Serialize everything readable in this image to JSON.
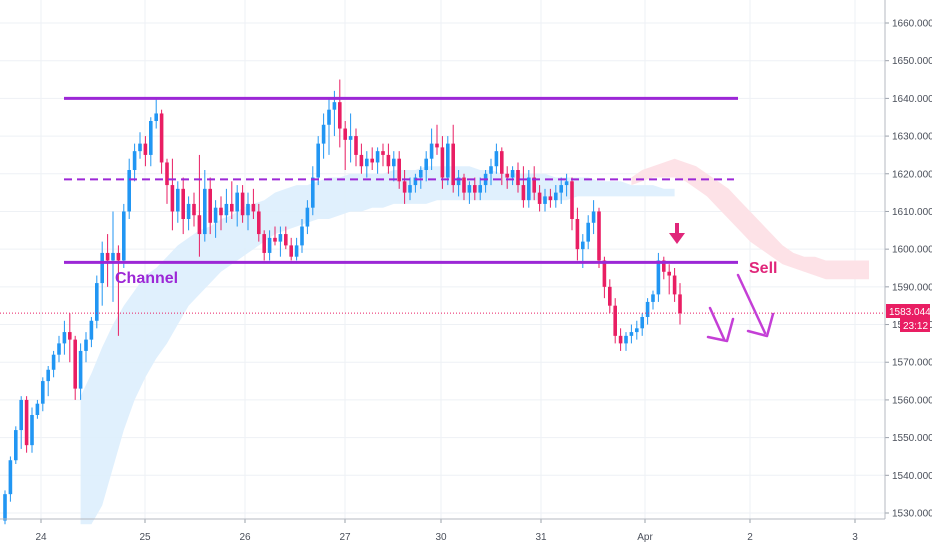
{
  "chart_data": {
    "type": "candlestick",
    "y_axis": {
      "ticks": [
        "1660.000",
        "1650.000",
        "1640.000",
        "1630.000",
        "1620.000",
        "1610.000",
        "1600.000",
        "1590.000",
        "1580.000",
        "1570.000",
        "1560.000",
        "1550.000",
        "1540.000",
        "1530.000"
      ],
      "range": [
        1527,
        1663
      ]
    },
    "x_axis": {
      "ticks": [
        "24",
        "25",
        "26",
        "27",
        "30",
        "31",
        "Apr",
        "2",
        "3"
      ]
    },
    "price_label": {
      "value": "1583.044",
      "countdown": "23:12",
      "value_num": 1583.044
    },
    "annotations": {
      "channel_label": "Channel",
      "sell_label": "Sell",
      "channel_top": 1640,
      "channel_mid": 1618.5,
      "channel_bottom": 1596.5
    },
    "candles": [
      {
        "o": 1528,
        "h": 1536,
        "l": 1527,
        "c": 1535
      },
      {
        "o": 1535,
        "h": 1545,
        "l": 1533,
        "c": 1544
      },
      {
        "o": 1544,
        "h": 1553,
        "l": 1543,
        "c": 1552
      },
      {
        "o": 1552,
        "h": 1561,
        "l": 1547,
        "c": 1560
      },
      {
        "o": 1560,
        "h": 1561,
        "l": 1546,
        "c": 1548
      },
      {
        "o": 1548,
        "h": 1558,
        "l": 1546,
        "c": 1556
      },
      {
        "o": 1556,
        "h": 1560,
        "l": 1555,
        "c": 1559
      },
      {
        "o": 1559,
        "h": 1566,
        "l": 1557,
        "c": 1565
      },
      {
        "o": 1565,
        "h": 1569,
        "l": 1561,
        "c": 1568
      },
      {
        "o": 1568,
        "h": 1573,
        "l": 1566,
        "c": 1572
      },
      {
        "o": 1572,
        "h": 1577,
        "l": 1570,
        "c": 1575
      },
      {
        "o": 1575,
        "h": 1581,
        "l": 1572,
        "c": 1578
      },
      {
        "o": 1578,
        "h": 1583,
        "l": 1570,
        "c": 1576
      },
      {
        "o": 1576,
        "h": 1577,
        "l": 1560,
        "c": 1563
      },
      {
        "o": 1563,
        "h": 1575,
        "l": 1560,
        "c": 1573
      },
      {
        "o": 1573,
        "h": 1578,
        "l": 1570,
        "c": 1576
      },
      {
        "o": 1576,
        "h": 1582,
        "l": 1574,
        "c": 1581
      },
      {
        "o": 1581,
        "h": 1593,
        "l": 1579,
        "c": 1591
      },
      {
        "o": 1591,
        "h": 1602,
        "l": 1585,
        "c": 1599
      },
      {
        "o": 1599,
        "h": 1604,
        "l": 1590,
        "c": 1597
      },
      {
        "o": 1597,
        "h": 1610,
        "l": 1586,
        "c": 1599
      },
      {
        "o": 1599,
        "h": 1601,
        "l": 1577,
        "c": 1597
      },
      {
        "o": 1597,
        "h": 1612,
        "l": 1595,
        "c": 1610
      },
      {
        "o": 1610,
        "h": 1624,
        "l": 1608,
        "c": 1621
      },
      {
        "o": 1621,
        "h": 1628,
        "l": 1618,
        "c": 1626
      },
      {
        "o": 1626,
        "h": 1631,
        "l": 1624,
        "c": 1628
      },
      {
        "o": 1628,
        "h": 1630,
        "l": 1622,
        "c": 1625
      },
      {
        "o": 1625,
        "h": 1635,
        "l": 1622,
        "c": 1634
      },
      {
        "o": 1634,
        "h": 1640,
        "l": 1632,
        "c": 1636
      },
      {
        "o": 1636,
        "h": 1637,
        "l": 1620,
        "c": 1623
      },
      {
        "o": 1623,
        "h": 1624,
        "l": 1612,
        "c": 1617
      },
      {
        "o": 1617,
        "h": 1624,
        "l": 1605,
        "c": 1610
      },
      {
        "o": 1610,
        "h": 1618,
        "l": 1607,
        "c": 1616
      },
      {
        "o": 1616,
        "h": 1619,
        "l": 1604,
        "c": 1608
      },
      {
        "o": 1608,
        "h": 1614,
        "l": 1605,
        "c": 1612
      },
      {
        "o": 1612,
        "h": 1615,
        "l": 1606,
        "c": 1609
      },
      {
        "o": 1609,
        "h": 1625,
        "l": 1598,
        "c": 1604
      },
      {
        "o": 1604,
        "h": 1621,
        "l": 1602,
        "c": 1616
      },
      {
        "o": 1616,
        "h": 1619,
        "l": 1604,
        "c": 1607
      },
      {
        "o": 1607,
        "h": 1613,
        "l": 1603,
        "c": 1611
      },
      {
        "o": 1611,
        "h": 1614,
        "l": 1605,
        "c": 1609
      },
      {
        "o": 1609,
        "h": 1616,
        "l": 1607,
        "c": 1612
      },
      {
        "o": 1612,
        "h": 1618,
        "l": 1608,
        "c": 1610
      },
      {
        "o": 1610,
        "h": 1617,
        "l": 1606,
        "c": 1615
      },
      {
        "o": 1615,
        "h": 1617,
        "l": 1607,
        "c": 1609
      },
      {
        "o": 1609,
        "h": 1615,
        "l": 1605,
        "c": 1612
      },
      {
        "o": 1612,
        "h": 1616,
        "l": 1608,
        "c": 1610
      },
      {
        "o": 1610,
        "h": 1612,
        "l": 1602,
        "c": 1604
      },
      {
        "o": 1604,
        "h": 1605,
        "l": 1597,
        "c": 1599
      },
      {
        "o": 1599,
        "h": 1605,
        "l": 1597,
        "c": 1603
      },
      {
        "o": 1603,
        "h": 1606,
        "l": 1601,
        "c": 1602
      },
      {
        "o": 1602,
        "h": 1606,
        "l": 1598,
        "c": 1604
      },
      {
        "o": 1604,
        "h": 1606,
        "l": 1600,
        "c": 1601
      },
      {
        "o": 1601,
        "h": 1603,
        "l": 1597,
        "c": 1598
      },
      {
        "o": 1598,
        "h": 1603,
        "l": 1597,
        "c": 1601
      },
      {
        "o": 1601,
        "h": 1608,
        "l": 1599,
        "c": 1606
      },
      {
        "o": 1606,
        "h": 1613,
        "l": 1604,
        "c": 1611
      },
      {
        "o": 1611,
        "h": 1622,
        "l": 1609,
        "c": 1619
      },
      {
        "o": 1619,
        "h": 1630,
        "l": 1617,
        "c": 1628
      },
      {
        "o": 1628,
        "h": 1636,
        "l": 1624,
        "c": 1633
      },
      {
        "o": 1633,
        "h": 1640,
        "l": 1625,
        "c": 1637
      },
      {
        "o": 1637,
        "h": 1642,
        "l": 1630,
        "c": 1639
      },
      {
        "o": 1639,
        "h": 1645,
        "l": 1627,
        "c": 1632
      },
      {
        "o": 1632,
        "h": 1634,
        "l": 1621,
        "c": 1629
      },
      {
        "o": 1629,
        "h": 1636,
        "l": 1623,
        "c": 1630
      },
      {
        "o": 1630,
        "h": 1632,
        "l": 1622,
        "c": 1625
      },
      {
        "o": 1625,
        "h": 1628,
        "l": 1620,
        "c": 1622
      },
      {
        "o": 1622,
        "h": 1626,
        "l": 1619,
        "c": 1624
      },
      {
        "o": 1624,
        "h": 1627,
        "l": 1621,
        "c": 1623
      },
      {
        "o": 1623,
        "h": 1627,
        "l": 1620,
        "c": 1626
      },
      {
        "o": 1626,
        "h": 1628,
        "l": 1622,
        "c": 1625
      },
      {
        "o": 1625,
        "h": 1628,
        "l": 1620,
        "c": 1622
      },
      {
        "o": 1622,
        "h": 1626,
        "l": 1618,
        "c": 1624
      },
      {
        "o": 1624,
        "h": 1626,
        "l": 1616,
        "c": 1618
      },
      {
        "o": 1618,
        "h": 1621,
        "l": 1612,
        "c": 1615
      },
      {
        "o": 1615,
        "h": 1619,
        "l": 1613,
        "c": 1617
      },
      {
        "o": 1617,
        "h": 1620,
        "l": 1615,
        "c": 1619
      },
      {
        "o": 1619,
        "h": 1622,
        "l": 1616,
        "c": 1621
      },
      {
        "o": 1621,
        "h": 1626,
        "l": 1618,
        "c": 1624
      },
      {
        "o": 1624,
        "h": 1632,
        "l": 1621,
        "c": 1628
      },
      {
        "o": 1628,
        "h": 1633,
        "l": 1625,
        "c": 1627
      },
      {
        "o": 1627,
        "h": 1630,
        "l": 1616,
        "c": 1619
      },
      {
        "o": 1619,
        "h": 1630,
        "l": 1617,
        "c": 1628
      },
      {
        "o": 1628,
        "h": 1633,
        "l": 1615,
        "c": 1617
      },
      {
        "o": 1617,
        "h": 1621,
        "l": 1614,
        "c": 1619
      },
      {
        "o": 1619,
        "h": 1620,
        "l": 1613,
        "c": 1615
      },
      {
        "o": 1615,
        "h": 1618,
        "l": 1612,
        "c": 1617
      },
      {
        "o": 1617,
        "h": 1619,
        "l": 1613,
        "c": 1615
      },
      {
        "o": 1615,
        "h": 1619,
        "l": 1613,
        "c": 1617
      },
      {
        "o": 1617,
        "h": 1621,
        "l": 1615,
        "c": 1620
      },
      {
        "o": 1620,
        "h": 1624,
        "l": 1617,
        "c": 1622
      },
      {
        "o": 1622,
        "h": 1628,
        "l": 1620,
        "c": 1626
      },
      {
        "o": 1626,
        "h": 1627,
        "l": 1617,
        "c": 1620
      },
      {
        "o": 1620,
        "h": 1622,
        "l": 1616,
        "c": 1619
      },
      {
        "o": 1619,
        "h": 1622,
        "l": 1617,
        "c": 1621
      },
      {
        "o": 1621,
        "h": 1623,
        "l": 1615,
        "c": 1617
      },
      {
        "o": 1617,
        "h": 1622,
        "l": 1611,
        "c": 1613
      },
      {
        "o": 1613,
        "h": 1621,
        "l": 1611,
        "c": 1619
      },
      {
        "o": 1619,
        "h": 1622,
        "l": 1613,
        "c": 1615
      },
      {
        "o": 1615,
        "h": 1617,
        "l": 1610,
        "c": 1612
      },
      {
        "o": 1612,
        "h": 1616,
        "l": 1610,
        "c": 1614
      },
      {
        "o": 1614,
        "h": 1616,
        "l": 1611,
        "c": 1613
      },
      {
        "o": 1613,
        "h": 1617,
        "l": 1611,
        "c": 1615
      },
      {
        "o": 1615,
        "h": 1619,
        "l": 1612,
        "c": 1617
      },
      {
        "o": 1617,
        "h": 1620,
        "l": 1614,
        "c": 1618
      },
      {
        "o": 1618,
        "h": 1619,
        "l": 1605,
        "c": 1608
      },
      {
        "o": 1608,
        "h": 1611,
        "l": 1597,
        "c": 1600
      },
      {
        "o": 1600,
        "h": 1604,
        "l": 1595,
        "c": 1602
      },
      {
        "o": 1602,
        "h": 1609,
        "l": 1600,
        "c": 1607
      },
      {
        "o": 1607,
        "h": 1613,
        "l": 1604,
        "c": 1610
      },
      {
        "o": 1610,
        "h": 1611,
        "l": 1595,
        "c": 1597
      },
      {
        "o": 1597,
        "h": 1598,
        "l": 1587,
        "c": 1590
      },
      {
        "o": 1590,
        "h": 1592,
        "l": 1583,
        "c": 1585
      },
      {
        "o": 1585,
        "h": 1587,
        "l": 1575,
        "c": 1577
      },
      {
        "o": 1577,
        "h": 1579,
        "l": 1573,
        "c": 1575
      },
      {
        "o": 1575,
        "h": 1578,
        "l": 1573,
        "c": 1577
      },
      {
        "o": 1577,
        "h": 1580,
        "l": 1575,
        "c": 1578
      },
      {
        "o": 1578,
        "h": 1581,
        "l": 1576,
        "c": 1579
      },
      {
        "o": 1579,
        "h": 1583,
        "l": 1577,
        "c": 1582
      },
      {
        "o": 1582,
        "h": 1587,
        "l": 1580,
        "c": 1586
      },
      {
        "o": 1586,
        "h": 1589,
        "l": 1584,
        "c": 1588
      },
      {
        "o": 1588,
        "h": 1599,
        "l": 1586,
        "c": 1597
      },
      {
        "o": 1597,
        "h": 1598,
        "l": 1592,
        "c": 1594
      },
      {
        "o": 1594,
        "h": 1596,
        "l": 1588,
        "c": 1593
      },
      {
        "o": 1593,
        "h": 1595,
        "l": 1586,
        "c": 1588
      },
      {
        "o": 1588,
        "h": 1591,
        "l": 1580,
        "c": 1583
      }
    ],
    "cloud": {
      "x": [
        14,
        16,
        18,
        20,
        22,
        24,
        26,
        28,
        30,
        32,
        34,
        36,
        38,
        40,
        42,
        44,
        46,
        48,
        50,
        52,
        54,
        56,
        58,
        60,
        62,
        64,
        66,
        68,
        70,
        72,
        74,
        76,
        78,
        80,
        82,
        84,
        86,
        88,
        90,
        92,
        94,
        96,
        98,
        100,
        102,
        104,
        106,
        108,
        110,
        112,
        114,
        116,
        118,
        120,
        122,
        124
      ],
      "upper": [
        1561,
        1567,
        1574,
        1580,
        1585,
        1589,
        1593,
        1595,
        1598,
        1601,
        1603,
        1605,
        1606,
        1608,
        1609,
        1611,
        1612,
        1613,
        1615,
        1616,
        1617,
        1617,
        1618,
        1619,
        1619,
        1620,
        1620,
        1620,
        1620,
        1621,
        1621,
        1621,
        1622,
        1622,
        1622,
        1622,
        1622,
        1621,
        1621,
        1620,
        1620,
        1620,
        1620,
        1620,
        1619,
        1619,
        1619,
        1619,
        1618,
        1618,
        1618,
        1617,
        1617,
        1617,
        1616,
        1616
      ],
      "lower": [
        1527,
        1527,
        1532,
        1542,
        1552,
        1560,
        1566,
        1571,
        1575,
        1580,
        1585,
        1588,
        1591,
        1594,
        1596,
        1598,
        1600,
        1602,
        1604,
        1605,
        1606,
        1607,
        1608,
        1608,
        1609,
        1610,
        1610,
        1611,
        1611,
        1612,
        1612,
        1612,
        1612,
        1613,
        1613,
        1613,
        1613,
        1613,
        1613,
        1613,
        1613,
        1613,
        1613,
        1613,
        1613,
        1613,
        1614,
        1614,
        1614,
        1614,
        1614,
        1614,
        1614,
        1614,
        1614,
        1614
      ],
      "red_x": [
        116,
        118,
        120,
        122,
        124,
        126,
        128,
        130,
        132,
        134,
        136,
        138,
        140,
        142,
        144,
        146,
        148,
        150,
        152,
        154,
        156,
        158,
        160
      ],
      "red_upper": [
        1619,
        1621,
        1622,
        1623,
        1624,
        1623,
        1622,
        1620,
        1618,
        1616,
        1613,
        1610,
        1607,
        1604,
        1601,
        1599,
        1598,
        1598,
        1597,
        1597,
        1597,
        1597,
        1597
      ],
      "red_lower": [
        1617,
        1618,
        1619,
        1619,
        1619,
        1618,
        1616,
        1614,
        1611,
        1608,
        1605,
        1602,
        1600,
        1598,
        1596,
        1595,
        1594,
        1593,
        1592,
        1592,
        1592,
        1592,
        1592
      ]
    },
    "colors": {
      "up": "#2196f3",
      "down": "#e91e63",
      "channel": "#9c27d6",
      "sell_arrow": "#e0267a",
      "cloud_blue": "#ddeefd",
      "cloud_red": "#fde0e6",
      "grid": "#eef1f5",
      "price_line": "#e91e63"
    }
  }
}
